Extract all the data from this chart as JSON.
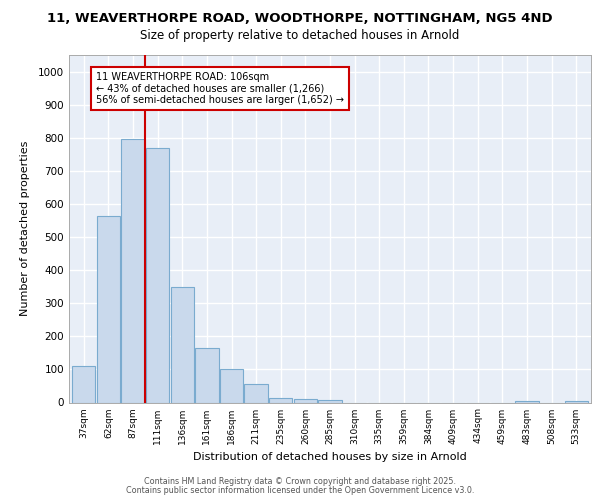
{
  "title": "11, WEAVERTHORPE ROAD, WOODTHORPE, NOTTINGHAM, NG5 4ND",
  "subtitle": "Size of property relative to detached houses in Arnold",
  "xlabel": "Distribution of detached houses by size in Arnold",
  "ylabel": "Number of detached properties",
  "bar_labels": [
    "37sqm",
    "62sqm",
    "87sqm",
    "111sqm",
    "136sqm",
    "161sqm",
    "186sqm",
    "211sqm",
    "235sqm",
    "260sqm",
    "285sqm",
    "310sqm",
    "335sqm",
    "359sqm",
    "384sqm",
    "409sqm",
    "434sqm",
    "459sqm",
    "483sqm",
    "508sqm",
    "533sqm"
  ],
  "bar_heights": [
    110,
    565,
    795,
    770,
    350,
    165,
    100,
    55,
    15,
    10,
    8,
    0,
    0,
    0,
    0,
    0,
    0,
    0,
    5,
    0,
    5
  ],
  "bar_color": "#c9d9ec",
  "bar_edge_color": "#7aabcf",
  "vline_x": 2.5,
  "vline_color": "#cc0000",
  "annotation_text": "11 WEAVERTHORPE ROAD: 106sqm\n← 43% of detached houses are smaller (1,266)\n56% of semi-detached houses are larger (1,652) →",
  "annotation_box_color": "#ffffff",
  "annotation_box_edge": "#cc0000",
  "ylim": [
    0,
    1050
  ],
  "yticks": [
    0,
    100,
    200,
    300,
    400,
    500,
    600,
    700,
    800,
    900,
    1000
  ],
  "background_color": "#ffffff",
  "plot_bg_color": "#e8eef7",
  "grid_color": "#ffffff",
  "footer_line1": "Contains HM Land Registry data © Crown copyright and database right 2025.",
  "footer_line2": "Contains public sector information licensed under the Open Government Licence v3.0."
}
